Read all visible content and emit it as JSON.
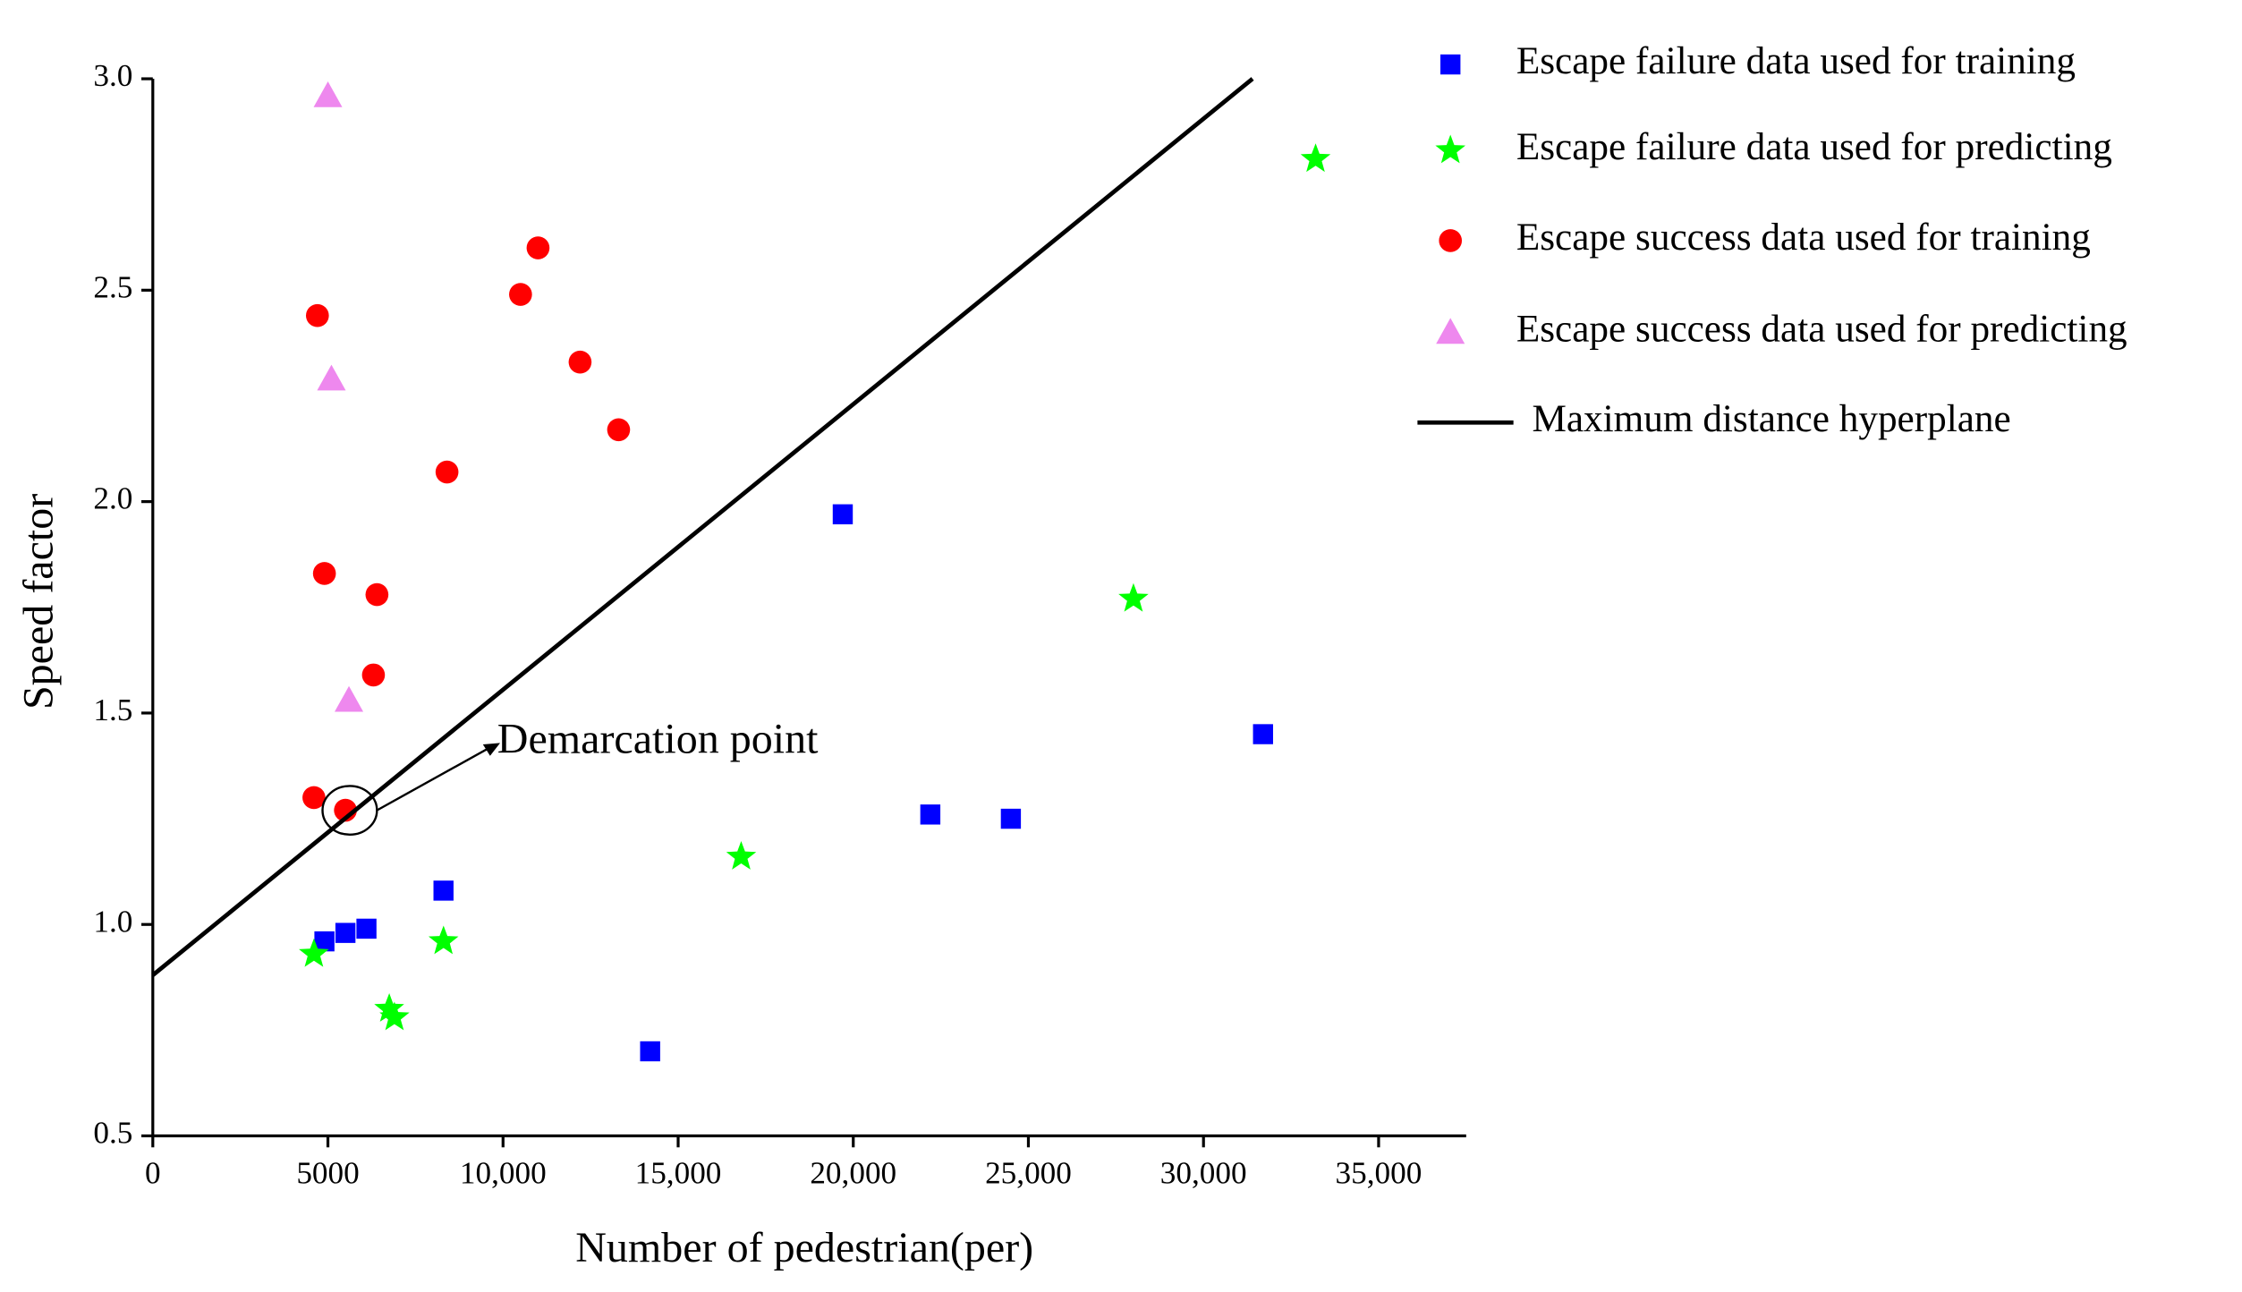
{
  "chart_data": {
    "type": "scatter",
    "xlabel": "Number of pedestrian(per)",
    "ylabel": "Speed factor",
    "xlim": [
      0,
      37500
    ],
    "ylim": [
      0.5,
      3.0
    ],
    "xticks": [
      0,
      5000,
      {
        "value": 10000,
        "label": "10,000"
      },
      {
        "value": 15000,
        "label": "15,000"
      },
      {
        "value": 20000,
        "label": "20,000"
      },
      {
        "value": 25000,
        "label": "25,000"
      },
      {
        "value": 30000,
        "label": "30,000"
      },
      {
        "value": 35000,
        "label": "35,000"
      }
    ],
    "yticks": [
      0.5,
      {
        "value": 1,
        "label": "1.0"
      },
      1.5,
      {
        "value": 2,
        "label": "2.0"
      },
      2.5,
      {
        "value": 3,
        "label": "3.0"
      }
    ],
    "series": [
      {
        "name": "Escape failure data used for training",
        "color": "#0000ff",
        "marker": "square",
        "x": [
          4900,
          5500,
          6100,
          8300,
          14200,
          19700,
          22200,
          24500,
          31700
        ],
        "values": [
          0.96,
          0.98,
          0.99,
          1.08,
          0.7,
          1.97,
          1.26,
          1.25,
          1.45
        ]
      },
      {
        "name": "Escape failure data used for predicting",
        "color": "#00ff00",
        "marker": "star",
        "x": [
          4600,
          6750,
          6900,
          8300,
          16800,
          28000,
          33200
        ],
        "values": [
          0.93,
          0.8,
          0.78,
          0.96,
          1.16,
          1.77,
          2.81
        ]
      },
      {
        "name": "Escape success data used for training",
        "color": "#ff0000",
        "marker": "circle",
        "x": [
          4700,
          4900,
          4600,
          5500,
          6300,
          6400,
          8400,
          10500,
          11000,
          12200,
          13300
        ],
        "values": [
          2.44,
          1.83,
          1.3,
          1.27,
          1.59,
          1.78,
          2.07,
          2.49,
          2.6,
          2.33,
          2.17
        ]
      },
      {
        "name": "Escape success data used for predicting",
        "color": "#ee88ee",
        "marker": "triangle",
        "x": [
          5000,
          5100,
          5600
        ],
        "values": [
          2.96,
          2.29,
          1.53
        ]
      },
      {
        "name": "Maximum distance hyperplane",
        "color": "#000000",
        "marker": "line",
        "x": [
          0,
          31400
        ],
        "values": [
          0.88,
          3.0
        ]
      }
    ],
    "annotation": {
      "text": "Demarcation point",
      "x": 5500,
      "y": 1.27
    }
  }
}
